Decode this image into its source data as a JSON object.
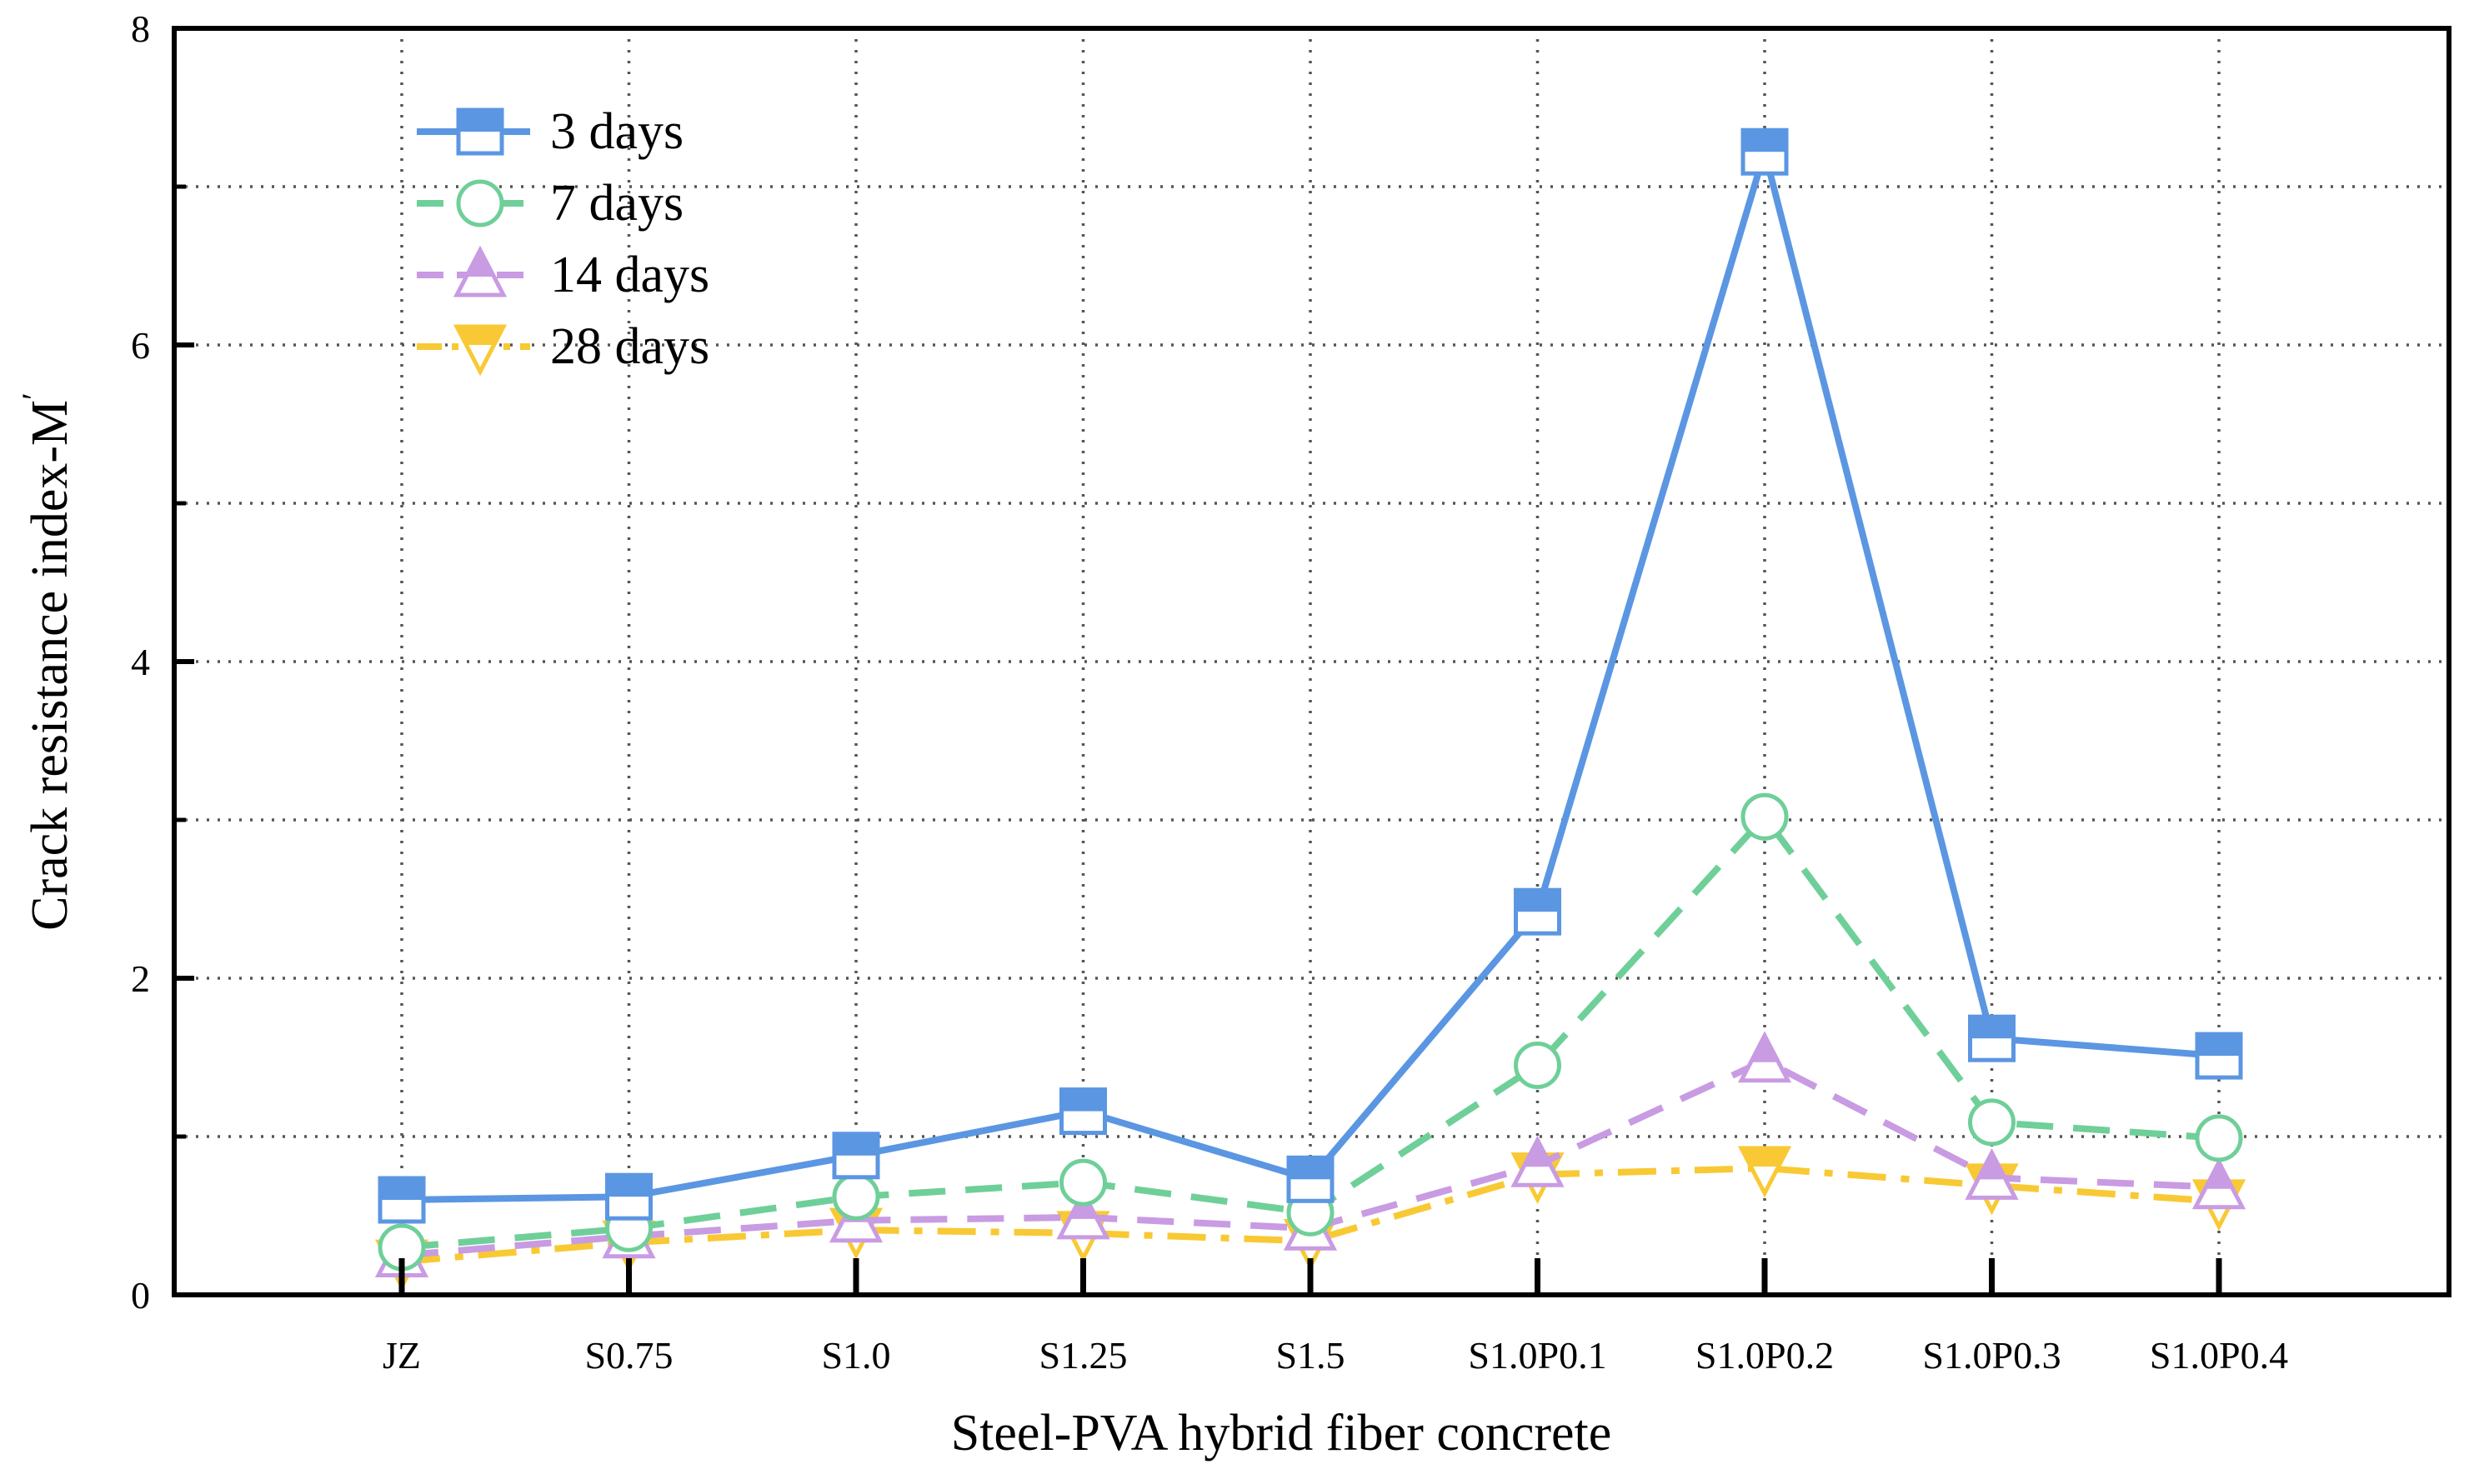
{
  "chart_data": {
    "type": "line",
    "title": "",
    "xlabel": "Steel-PVA hybrid fiber concrete",
    "ylabel": "Crack resistance index-M",
    "ylabel_prime": "′",
    "categories": [
      "JZ",
      "S0.75",
      "S1.0",
      "S1.25",
      "S1.5",
      "S1.0P0.1",
      "S1.0P0.2",
      "S1.0P0.3",
      "S1.0P0.4"
    ],
    "ylim": [
      0,
      8
    ],
    "yticks": [
      0,
      2,
      4,
      6,
      8
    ],
    "ytick_labels": [
      "0",
      "2",
      "4",
      "6",
      "8"
    ],
    "yminor": [
      1,
      3,
      5,
      7
    ],
    "grid": true,
    "legend_position": "top-left",
    "series": [
      {
        "name": "3 days",
        "values": [
          0.6,
          0.62,
          0.88,
          1.16,
          0.73,
          2.42,
          7.22,
          1.62,
          1.51
        ],
        "color": "#5b96e2",
        "marker": "square",
        "line_style": "solid"
      },
      {
        "name": "7 days",
        "values": [
          0.3,
          0.42,
          0.62,
          0.71,
          0.52,
          1.45,
          3.02,
          1.09,
          0.99
        ],
        "color": "#6fcf99",
        "marker": "circle",
        "line_style": "dashed"
      },
      {
        "name": "14 days",
        "values": [
          0.25,
          0.37,
          0.47,
          0.49,
          0.42,
          0.82,
          1.48,
          0.74,
          0.68
        ],
        "color": "#c99be3",
        "marker": "triangle-up",
        "line_style": "dashed"
      },
      {
        "name": "28 days",
        "values": [
          0.21,
          0.33,
          0.41,
          0.39,
          0.34,
          0.76,
          0.8,
          0.69,
          0.59
        ],
        "color": "#f8c934",
        "marker": "triangle-down",
        "line_style": "dashdot"
      }
    ]
  }
}
